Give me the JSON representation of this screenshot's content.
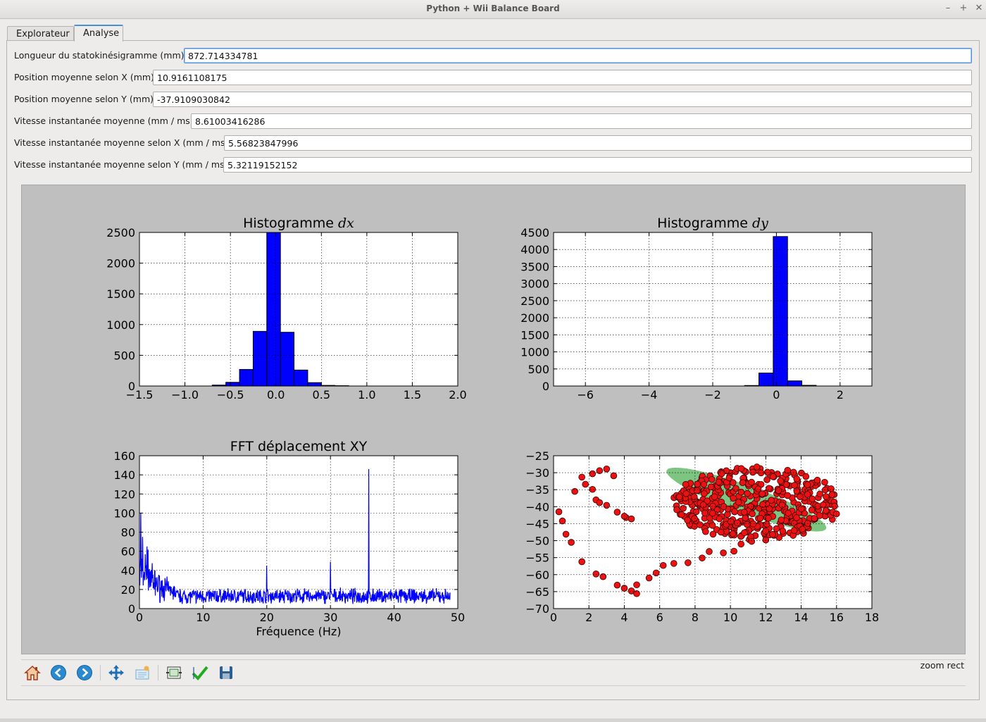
{
  "window": {
    "title": "Python + Wii Balance Board",
    "controls": [
      "–",
      "+",
      "✕"
    ]
  },
  "tabs": [
    {
      "label": "Explorateur"
    },
    {
      "label": "Analyse"
    }
  ],
  "fields": [
    {
      "label": "Longueur du statokinésigramme (mm)",
      "value": "872.714334781"
    },
    {
      "label": "Position moyenne selon X (mm)",
      "value": "10.9161108175"
    },
    {
      "label": "Position moyenne selon Y (mm)",
      "value": "-37.9109030842"
    },
    {
      "label": "Vitesse instantanée moyenne (mm / ms)",
      "value": "8.61003416286"
    },
    {
      "label": "Vitesse instantanée moyenne selon X (mm / ms)",
      "value": "5.56823847996"
    },
    {
      "label": "Vitesse instantanée moyenne selon Y (mm / ms)",
      "value": "5.32119152152"
    }
  ],
  "toolbar": {
    "buttons": [
      {
        "name": "home-icon"
      },
      {
        "name": "back-icon"
      },
      {
        "name": "forward-icon"
      },
      {
        "name": "pan-icon"
      },
      {
        "name": "zoom-icon"
      },
      {
        "name": "subplots-icon"
      },
      {
        "name": "customize-icon"
      },
      {
        "name": "save-icon"
      }
    ],
    "status": "zoom rect"
  },
  "chart_data": [
    {
      "type": "bar",
      "title": "Histogramme ",
      "title_math": "dx",
      "xlim": [
        -1.5,
        2.0
      ],
      "ylim": [
        0,
        2500
      ],
      "xticks": [
        "−1.5",
        "−1.0",
        "−0.5",
        "0.0",
        "0.5",
        "1.0",
        "1.5",
        "2.0"
      ],
      "yticks": [
        "0",
        "500",
        "1000",
        "1500",
        "2000",
        "2500"
      ],
      "bins": [
        {
          "x0": -0.7,
          "x1": -0.55,
          "value": 15
        },
        {
          "x0": -0.55,
          "x1": -0.4,
          "value": 60
        },
        {
          "x0": -0.4,
          "x1": -0.25,
          "value": 270
        },
        {
          "x0": -0.25,
          "x1": -0.1,
          "value": 890
        },
        {
          "x0": -0.1,
          "x1": 0.05,
          "value": 2600
        },
        {
          "x0": 0.05,
          "x1": 0.2,
          "value": 875
        },
        {
          "x0": 0.2,
          "x1": 0.35,
          "value": 260
        },
        {
          "x0": 0.35,
          "x1": 0.5,
          "value": 55
        },
        {
          "x0": 0.5,
          "x1": 0.65,
          "value": 10
        },
        {
          "x0": 0.65,
          "x1": 0.8,
          "value": 5
        }
      ],
      "color": "#0000ff",
      "grid": true
    },
    {
      "type": "bar",
      "title": "Histogramme ",
      "title_math": "dy",
      "xlim": [
        -7.0,
        3.0
      ],
      "ylim": [
        0,
        4500
      ],
      "xticks": [
        "−6",
        "−4",
        "−2",
        "0",
        "2"
      ],
      "yticks": [
        "0",
        "500",
        "1000",
        "1500",
        "2000",
        "2500",
        "3000",
        "3500",
        "4000",
        "4500"
      ],
      "bins": [
        {
          "x0": -1.0,
          "x1": -0.55,
          "value": 15
        },
        {
          "x0": -0.55,
          "x1": -0.1,
          "value": 380
        },
        {
          "x0": -0.1,
          "x1": 0.35,
          "value": 4380
        },
        {
          "x0": 0.35,
          "x1": 0.8,
          "value": 150
        },
        {
          "x0": 0.8,
          "x1": 1.25,
          "value": 20
        }
      ],
      "color": "#0000ff",
      "grid": true
    },
    {
      "type": "line",
      "title": "FFT déplacement XY",
      "xlabel": "Fréquence (Hz)",
      "xlim": [
        0,
        50
      ],
      "ylim": [
        0,
        160
      ],
      "xticks": [
        "0",
        "10",
        "20",
        "30",
        "40",
        "50"
      ],
      "yticks": [
        "0",
        "20",
        "40",
        "60",
        "80",
        "100",
        "120",
        "140",
        "160"
      ],
      "baseline": 10,
      "peaks": [
        {
          "x": 0.2,
          "y": 100
        },
        {
          "x": 0.5,
          "y": 75
        },
        {
          "x": 1.2,
          "y": 65
        },
        {
          "x": 20.0,
          "y": 45
        },
        {
          "x": 30.0,
          "y": 49
        },
        {
          "x": 36.0,
          "y": 146
        }
      ],
      "x_end": 48.8,
      "color": "#0000ff",
      "grid": true
    },
    {
      "type": "scatter",
      "xlim": [
        0,
        18
      ],
      "ylim": [
        -70,
        -25
      ],
      "xticks": [
        "0",
        "2",
        "4",
        "6",
        "8",
        "10",
        "12",
        "14",
        "16",
        "18"
      ],
      "yticks": [
        "−25",
        "−30",
        "−35",
        "−40",
        "−45",
        "−50",
        "−55",
        "−60",
        "−65",
        "−70"
      ],
      "ellipse": {
        "cx": 10.9,
        "cy": -37.9,
        "rx": 4.8,
        "ry": 7.5,
        "angle_deg": 20,
        "color": "#66bb6a"
      },
      "path_points": [
        [
          0.3,
          -41.5
        ],
        [
          0.5,
          -44.2
        ],
        [
          0.7,
          -48.1
        ],
        [
          1.0,
          -50.5
        ],
        [
          1.6,
          -56.2
        ],
        [
          2.4,
          -59.8
        ],
        [
          2.8,
          -60.6
        ],
        [
          3.6,
          -63.1
        ],
        [
          4.0,
          -64.0
        ],
        [
          4.4,
          -64.8
        ],
        [
          4.7,
          -65.6
        ],
        [
          4.7,
          -63.0
        ],
        [
          5.4,
          -61.0
        ],
        [
          5.8,
          -59.5
        ],
        [
          6.2,
          -57.3
        ],
        [
          6.8,
          -56.7
        ],
        [
          7.6,
          -56.5
        ],
        [
          8.4,
          -55.1
        ],
        [
          8.8,
          -53.2
        ],
        [
          9.6,
          -53.6
        ],
        [
          10.2,
          -53.1
        ],
        [
          10.6,
          -51.0
        ],
        [
          11.2,
          -50.2
        ],
        [
          12.0,
          -49.8
        ],
        [
          1.2,
          -35.5
        ],
        [
          1.8,
          -33.4
        ],
        [
          2.2,
          -34.9
        ],
        [
          2.4,
          -38.0
        ],
        [
          2.6,
          -38.8
        ],
        [
          3.0,
          -39.6
        ],
        [
          3.6,
          -41.6
        ],
        [
          4.1,
          -43.2
        ],
        [
          4.4,
          -43.6
        ],
        [
          4.0,
          -42.8
        ],
        [
          1.6,
          -31.3
        ],
        [
          2.2,
          -30.3
        ],
        [
          2.6,
          -29.4
        ],
        [
          3.0,
          -28.9
        ],
        [
          3.4,
          -30.9
        ]
      ],
      "cluster": {
        "x": [
          6.5,
          16.0
        ],
        "y": [
          -50.0,
          -26.0
        ],
        "center": [
          11.5,
          -39.0
        ]
      },
      "marker_color": "#ee1111",
      "grid": true
    }
  ]
}
